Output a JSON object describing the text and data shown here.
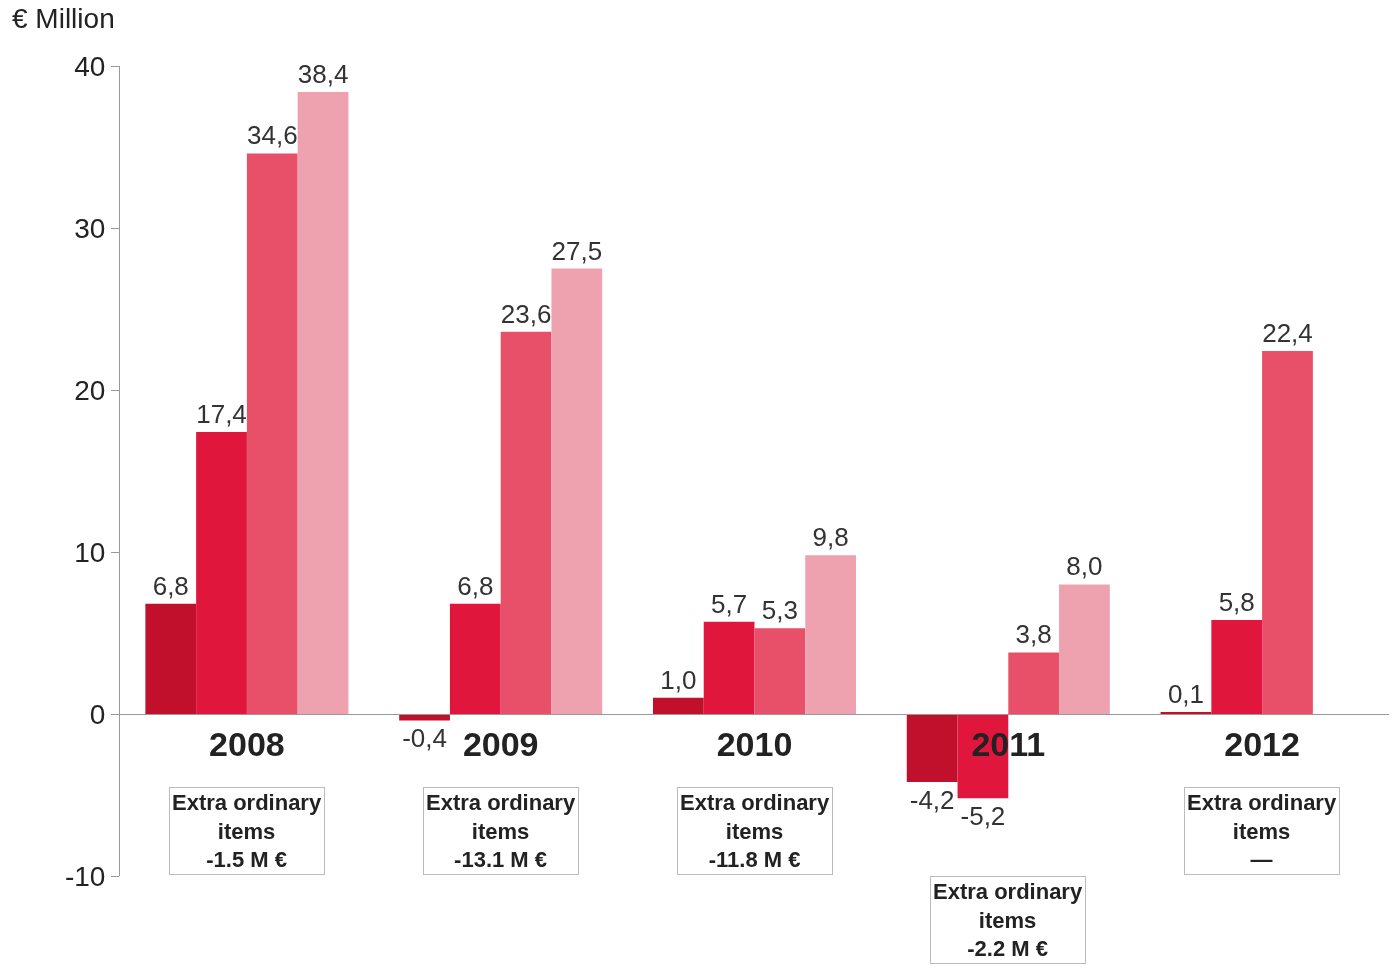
{
  "chart_data": {
    "type": "bar",
    "ylabel": "€ Million",
    "categories": [
      "2008",
      "2009",
      "2010",
      "2011",
      "2012"
    ],
    "series": [
      {
        "color": "#c0102c",
        "values": [
          6.8,
          -0.4,
          1.0,
          -4.2,
          0.1
        ],
        "value_labels": [
          "6,8",
          "-0,4",
          "1,0",
          "-4,2",
          "0,1"
        ]
      },
      {
        "color": "#e0163c",
        "values": [
          17.4,
          6.8,
          5.7,
          -5.2,
          5.8
        ],
        "value_labels": [
          "17,4",
          "6,8",
          "5,7",
          "-5,2",
          "5,8"
        ]
      },
      {
        "color": "#e8506a",
        "values": [
          34.6,
          23.6,
          5.3,
          3.8,
          22.4
        ],
        "value_labels": [
          "34,6",
          "23,6",
          "5,3",
          "3,8",
          "22,4"
        ]
      },
      {
        "color": "#eea2b0",
        "values": [
          38.4,
          27.5,
          9.8,
          8.0,
          null
        ],
        "value_labels": [
          "38,4",
          "27,5",
          "9,8",
          "8,0",
          null
        ]
      }
    ],
    "ylim": [
      -10,
      40
    ],
    "yticks": [
      -10,
      0,
      10,
      20,
      30,
      40
    ],
    "annotations": [
      "Extra ordinary\nitems\n-1.5 M €",
      "Extra ordinary\nitems\n-13.1 M €",
      "Extra ordinary\nitems\n-11.8 M €",
      "Extra ordinary\nitems\n-2.2 M €",
      "Extra ordinary\nitems\n—"
    ]
  }
}
